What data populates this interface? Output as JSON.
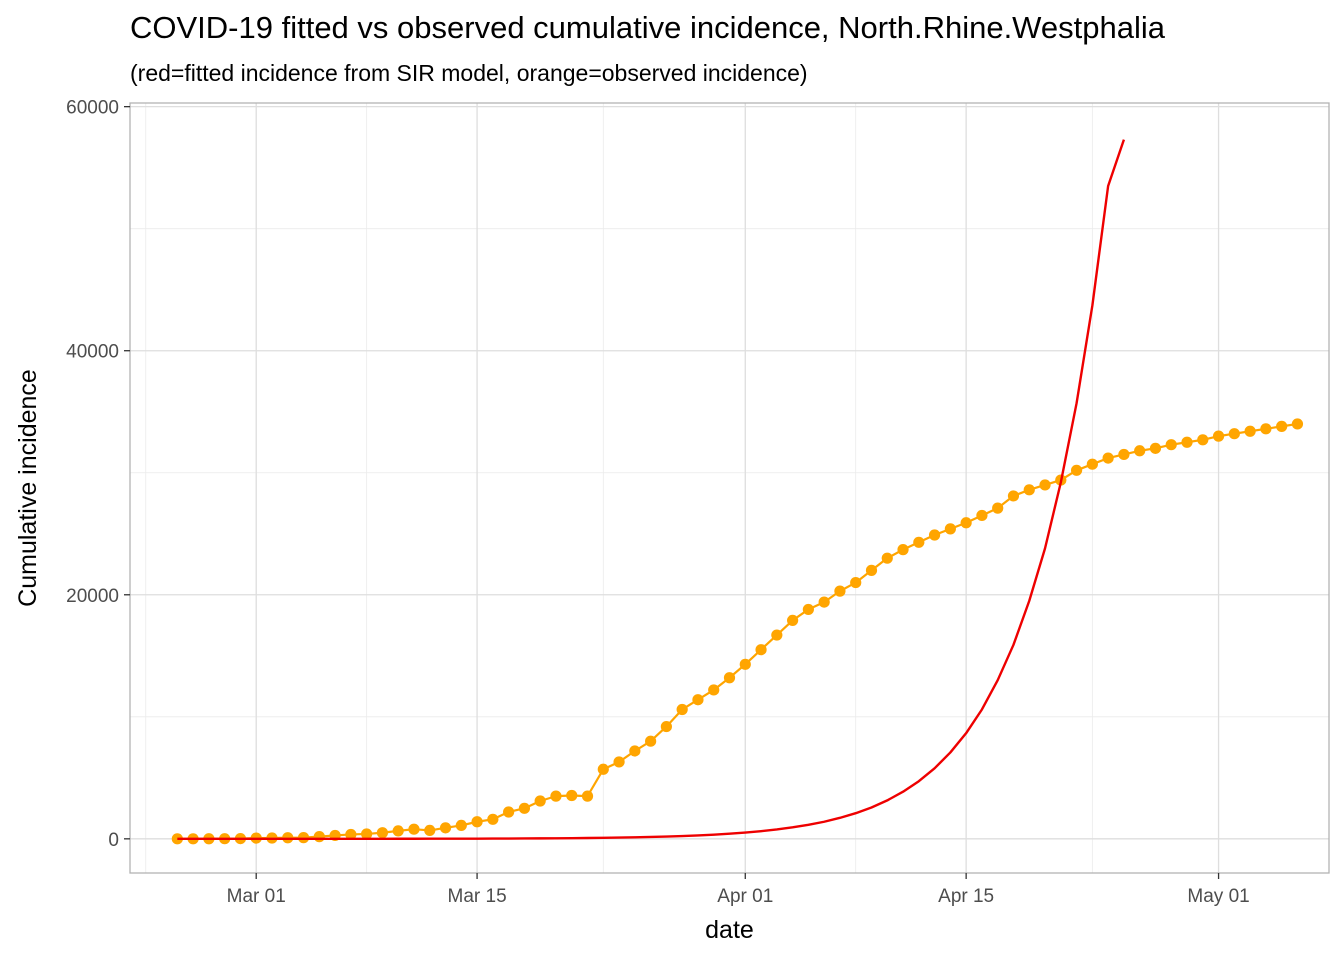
{
  "chart_data": {
    "type": "line",
    "title": "COVID-19 fitted vs observed cumulative incidence, North.Rhine.Westphalia",
    "subtitle": "(red=fitted incidence from SIR model, orange=observed incidence)",
    "xlabel": "date",
    "ylabel": "Cumulative incidence",
    "x_start": "2020-02-25",
    "x_range": [
      "2020-02-22",
      "2020-05-08"
    ],
    "ylim": [
      -2800,
      60300
    ],
    "x_ticks": [
      {
        "date": "2020-03-01",
        "label": "Mar 01"
      },
      {
        "date": "2020-03-15",
        "label": "Mar 15"
      },
      {
        "date": "2020-04-01",
        "label": "Apr 01"
      },
      {
        "date": "2020-04-15",
        "label": "Apr 15"
      },
      {
        "date": "2020-05-01",
        "label": "May 01"
      }
    ],
    "x_minor_ticks": [
      "2020-02-23",
      "2020-03-08",
      "2020-03-23",
      "2020-04-08",
      "2020-04-23",
      "2020-05-08"
    ],
    "y_ticks": [
      0,
      20000,
      40000,
      60000
    ],
    "y_minor_ticks": [
      10000,
      30000,
      50000
    ],
    "grid": true,
    "series": [
      {
        "name": "observed incidence",
        "color": "#FFA500",
        "points": true,
        "values": [
          1,
          2,
          5,
          10,
          20,
          60,
          70,
          90,
          100,
          180,
          280,
          360,
          400,
          500,
          650,
          790,
          690,
          900,
          1100,
          1400,
          1600,
          2200,
          2500,
          3100,
          3500,
          3550,
          3500,
          5700,
          6300,
          7200,
          8000,
          9200,
          10600,
          11400,
          12200,
          13200,
          14300,
          15500,
          16700,
          17900,
          18800,
          19400,
          20300,
          21000,
          22000,
          23000,
          23700,
          24300,
          24900,
          25400,
          25900,
          26500,
          27100,
          28100,
          28600,
          29000,
          29400,
          30200,
          30700,
          31200,
          31500,
          31800,
          32000,
          32300,
          32500,
          32700,
          33000,
          33200,
          33400,
          33600,
          33800,
          34000
        ]
      },
      {
        "name": "fitted incidence from SIR model",
        "color": "#EE0000",
        "points": false,
        "model": "exponential",
        "values": [
          0,
          0,
          0,
          0,
          1,
          1,
          1,
          1,
          2,
          2,
          3,
          3,
          4,
          5,
          6,
          7,
          9,
          11,
          13,
          16,
          20,
          25,
          30,
          37,
          45,
          55,
          68,
          83,
          101,
          124,
          152,
          186,
          228,
          279,
          341,
          418,
          512,
          626,
          767,
          939,
          1150,
          1400,
          1720,
          2100,
          2570,
          3150,
          3860,
          4720,
          5780,
          7080,
          8660,
          10600,
          13000,
          15900,
          19500,
          23800,
          29200,
          35700,
          43700,
          53500,
          57300
        ]
      }
    ]
  }
}
